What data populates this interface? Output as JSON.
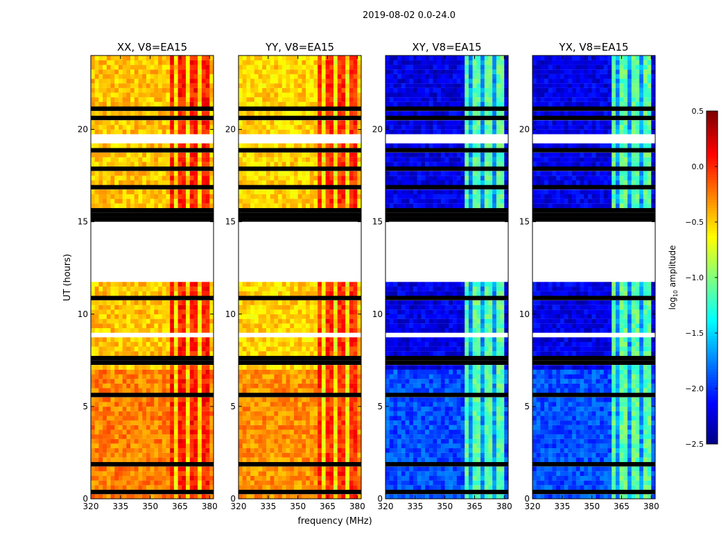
{
  "suptitle": "2019-08-02 0.0-24.0",
  "chart_data": {
    "type": "heatmap",
    "title": "2019-08-02 0.0-24.0",
    "xlabel": "frequency (MHz)",
    "ylabel": "UT (hours)",
    "xlim": [
      320,
      382
    ],
    "ylim": [
      0,
      24
    ],
    "x_ticks": [
      320,
      335,
      350,
      365,
      380
    ],
    "y_ticks": [
      0,
      5,
      10,
      15,
      20
    ],
    "panels": [
      {
        "name": "xx",
        "title": "XX, V8=EA15",
        "base_level": -0.45,
        "band_level": 0.05,
        "low_hour_level": -0.25
      },
      {
        "name": "yy",
        "title": "YY, V8=EA15",
        "base_level": -0.5,
        "band_level": 0.0,
        "low_hour_level": -0.3
      },
      {
        "name": "xy",
        "title": "XY, V8=EA15",
        "base_level": -2.2,
        "band_level": -1.1,
        "low_hour_level": -1.9
      },
      {
        "name": "yx",
        "title": "YX, V8=EA15",
        "base_level": -2.2,
        "band_level": -1.1,
        "low_hour_level": -1.9
      }
    ],
    "gap_hours": [
      [
        11.8,
        15.0
      ],
      [
        19.3,
        19.6
      ],
      [
        8.75,
        8.9
      ]
    ],
    "active_band_mhz": [
      361,
      380
    ],
    "colorbar": {
      "label": "log",
      "label_sub": "10",
      "label_suffix": " amplitude",
      "range": [
        -2.5,
        0.5
      ],
      "ticks": [
        0.5,
        0.0,
        -0.5,
        -1.0,
        -1.5,
        -2.0,
        -2.5
      ],
      "tick_labels": [
        "0.5",
        "0.0",
        "−0.5",
        "−1.0",
        "−1.5",
        "−2.0",
        "−2.5"
      ],
      "colormap": "jet"
    }
  }
}
